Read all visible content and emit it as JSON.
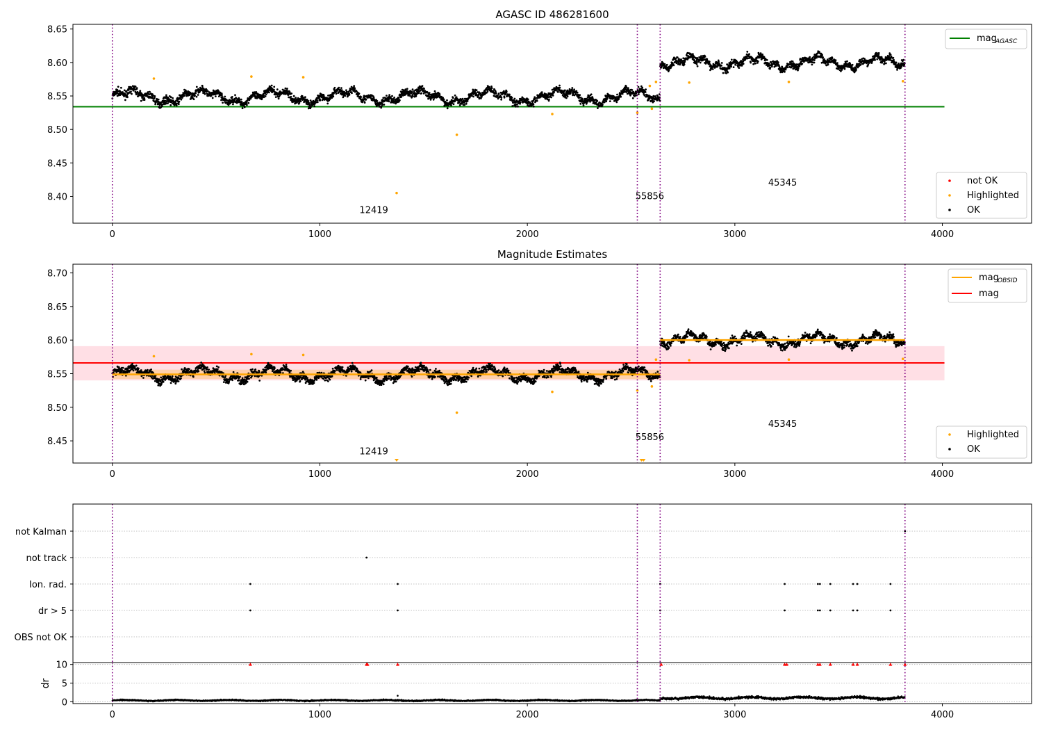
{
  "chart_data": [
    {
      "type": "scatter",
      "title": "AGASC ID 486281600",
      "xlabel": "",
      "ylabel": "",
      "xlim": [
        -190,
        4430
      ],
      "ylim": [
        8.36,
        8.657
      ],
      "xticks": [
        0,
        1000,
        2000,
        3000,
        4000
      ],
      "yticks": [
        8.4,
        8.45,
        8.5,
        8.55,
        8.6,
        8.65
      ],
      "ytick_labels": [
        "8.40",
        "8.45",
        "8.50",
        "8.55",
        "8.60",
        "8.65"
      ],
      "obsid_boundaries": [
        0,
        2530,
        2640,
        3820
      ],
      "obsid_labels": [
        {
          "text": "12419",
          "x": 1260,
          "y": 8.375
        },
        {
          "text": "55856",
          "x": 2590,
          "y": 8.396
        },
        {
          "text": "45345",
          "x": 3230,
          "y": 8.416
        }
      ],
      "reference_lines": [
        {
          "name": "mag_AGASC",
          "value": 8.534,
          "x_end": 4010,
          "color": "#008000"
        }
      ],
      "ok_segments": [
        {
          "x_start": 0,
          "x_end": 2640,
          "level": 8.549
        },
        {
          "x_start": 2640,
          "x_end": 3820,
          "level": 8.6
        }
      ],
      "highlighted": [
        [
          200,
          8.576
        ],
        [
          670,
          8.579
        ],
        [
          920,
          8.578
        ],
        [
          1370,
          8.405
        ],
        [
          1660,
          8.492
        ],
        [
          2120,
          8.523
        ],
        [
          2530,
          8.525
        ],
        [
          2590,
          8.565
        ],
        [
          2600,
          8.531
        ],
        [
          2620,
          8.571
        ],
        [
          2780,
          8.57
        ],
        [
          3260,
          8.571
        ],
        [
          3810,
          8.572
        ]
      ],
      "legend": {
        "placement": "top-right",
        "entries": [
          {
            "label": "mag",
            "sub": "AGASC",
            "color": "#008000"
          }
        ]
      },
      "legend2": {
        "placement": "lower-right",
        "entries": [
          {
            "label": "not OK",
            "color": "#ff0000"
          },
          {
            "label": "Highlighted",
            "color": "#ffa500"
          },
          {
            "label": "OK",
            "color": "#000000"
          }
        ]
      }
    },
    {
      "type": "scatter",
      "title": "Magnitude Estimates",
      "xlabel": "",
      "ylabel": "",
      "xlim": [
        -190,
        4430
      ],
      "ylim": [
        8.417,
        8.713
      ],
      "xticks": [
        0,
        1000,
        2000,
        3000,
        4000
      ],
      "yticks": [
        8.45,
        8.5,
        8.55,
        8.6,
        8.65,
        8.7
      ],
      "ytick_labels": [
        "8.45",
        "8.50",
        "8.55",
        "8.60",
        "8.65",
        "8.70"
      ],
      "obsid_boundaries": [
        0,
        2530,
        2640,
        3820
      ],
      "obsid_labels": [
        {
          "text": "12419",
          "x": 1260,
          "y": 8.43
        },
        {
          "text": "55856",
          "x": 2590,
          "y": 8.451
        },
        {
          "text": "45345",
          "x": 3230,
          "y": 8.471
        }
      ],
      "band": {
        "low": 8.54,
        "high": 8.591,
        "x_end": 4010,
        "color": "#ffc0cb"
      },
      "obsid_band": {
        "low": 8.542,
        "high": 8.556,
        "x_start": 0,
        "x_end": 2640,
        "color": "#ffa500"
      },
      "reference_lines": [
        {
          "name": "mag",
          "value": 8.566,
          "x_end": 4010,
          "color": "#ff0000"
        }
      ],
      "ok_segments": [
        {
          "x_start": 0,
          "x_end": 2640,
          "level": 8.549
        },
        {
          "x_start": 2640,
          "x_end": 3820,
          "level": 8.6
        }
      ],
      "obsid_mag_segments": [
        {
          "x_start": 0,
          "x_end": 2640,
          "value": 8.549
        },
        {
          "x_start": 2640,
          "x_end": 3820,
          "value": 8.6
        }
      ],
      "highlighted": [
        [
          200,
          8.576
        ],
        [
          670,
          8.579
        ],
        [
          920,
          8.578
        ],
        [
          1660,
          8.492
        ],
        [
          2120,
          8.523
        ],
        [
          2530,
          8.525
        ],
        [
          2600,
          8.531
        ],
        [
          2620,
          8.571
        ],
        [
          2780,
          8.57
        ],
        [
          3260,
          8.571
        ],
        [
          3810,
          8.572
        ]
      ],
      "offscale_markers": [
        1370,
        2550,
        2560
      ],
      "legend": {
        "placement": "top-right",
        "entries": [
          {
            "label": "mag",
            "sub": "OBSID",
            "color": "#ffa500"
          },
          {
            "label": "mag",
            "sub": "",
            "color": "#ff0000"
          }
        ]
      },
      "legend2": {
        "placement": "lower-right",
        "entries": [
          {
            "label": "Highlighted",
            "color": "#ffa500"
          },
          {
            "label": "OK",
            "color": "#000000"
          }
        ]
      }
    },
    {
      "type": "scatter",
      "title": "",
      "xlabel": "",
      "ylabel": "",
      "xlim": [
        -190,
        4430
      ],
      "categories": [
        "not Kalman",
        "not track",
        "Ion. rad.",
        "dr > 5",
        "OBS not OK"
      ],
      "obsid_boundaries": [
        0,
        2530,
        2640,
        3820
      ],
      "flags": {
        "not Kalman": [
          3820
        ],
        "not track": [
          1225
        ],
        "Ion. rad.": [
          665,
          1375,
          2640,
          3240,
          3400,
          3410,
          3460,
          3570,
          3590,
          3750
        ],
        "dr > 5": [
          665,
          1375,
          2640,
          3240,
          3400,
          3410,
          3460,
          3570,
          3590,
          3750
        ],
        "OBS not OK": []
      }
    },
    {
      "type": "scatter",
      "title": "",
      "xlabel": "",
      "ylabel": "dr",
      "xlim": [
        -190,
        4430
      ],
      "ylim": [
        -0.5,
        10.5
      ],
      "yticks": [
        0,
        5,
        10
      ],
      "xticks": [
        0,
        1000,
        2000,
        3000,
        4000
      ],
      "obsid_boundaries": [
        0,
        2530,
        2640,
        3820
      ],
      "clipped_points": [
        665,
        1225,
        1230,
        1375,
        2645,
        3240,
        3250,
        3400,
        3410,
        3460,
        3570,
        3590,
        3750,
        3820
      ],
      "dr_segments": [
        {
          "x_start": 0,
          "x_end": 2640,
          "mean": 0.35,
          "amp": 0.25
        },
        {
          "x_start": 2640,
          "x_end": 3820,
          "mean": 1.0,
          "amp": 0.5
        }
      ]
    }
  ]
}
